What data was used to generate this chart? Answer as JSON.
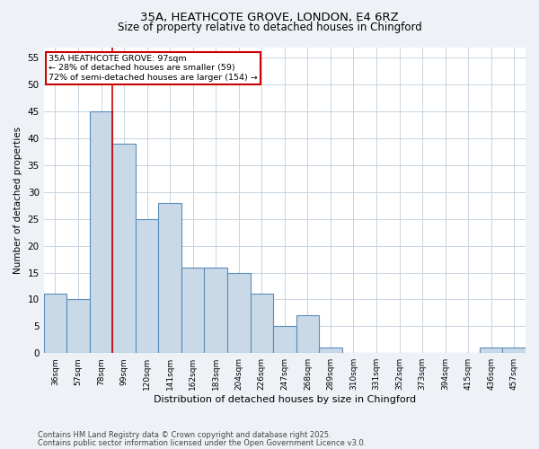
{
  "title1": "35A, HEATHCOTE GROVE, LONDON, E4 6RZ",
  "title2": "Size of property relative to detached houses in Chingford",
  "xlabel": "Distribution of detached houses by size in Chingford",
  "ylabel": "Number of detached properties",
  "categories": [
    "36sqm",
    "57sqm",
    "78sqm",
    "99sqm",
    "120sqm",
    "141sqm",
    "162sqm",
    "183sqm",
    "204sqm",
    "226sqm",
    "247sqm",
    "268sqm",
    "289sqm",
    "310sqm",
    "331sqm",
    "352sqm",
    "373sqm",
    "394sqm",
    "415sqm",
    "436sqm",
    "457sqm"
  ],
  "values": [
    11,
    10,
    45,
    39,
    25,
    28,
    16,
    16,
    15,
    11,
    5,
    7,
    1,
    0,
    0,
    0,
    0,
    0,
    0,
    1,
    1
  ],
  "bar_color": "#c9d9e8",
  "bar_edge_color": "#5b8db8",
  "bar_linewidth": 0.8,
  "vline_color": "#cc0000",
  "vline_x_index": 2.5,
  "annotation_box_text": "35A HEATHCOTE GROVE: 97sqm\n← 28% of detached houses are smaller (59)\n72% of semi-detached houses are larger (154) →",
  "annotation_box_color": "#cc0000",
  "ylim": [
    0,
    57
  ],
  "yticks": [
    0,
    5,
    10,
    15,
    20,
    25,
    30,
    35,
    40,
    45,
    50,
    55
  ],
  "footnote1": "Contains HM Land Registry data © Crown copyright and database right 2025.",
  "footnote2": "Contains public sector information licensed under the Open Government Licence v3.0.",
  "bg_color": "#eef2f7",
  "plot_bg_color": "#ffffff",
  "grid_color": "#c8d4e0"
}
